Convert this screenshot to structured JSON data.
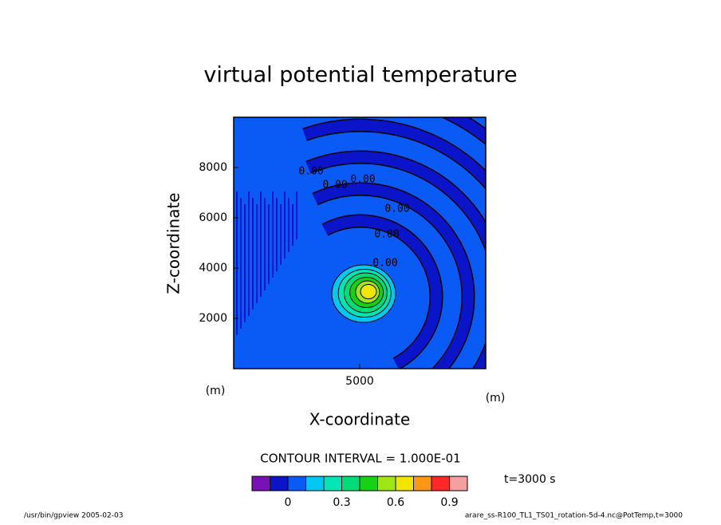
{
  "chart_data": {
    "type": "contour",
    "title": "virtual potential temperature",
    "xlabel": "X-coordinate",
    "ylabel": "Z-coordinate",
    "xunit": "(m)",
    "yunit": "(m)",
    "xlim": [
      0,
      10000
    ],
    "ylim": [
      0,
      10000
    ],
    "xticks": [
      5000
    ],
    "yticks": [
      2000,
      4000,
      6000,
      8000
    ],
    "contour_labels": [
      "0.00",
      "0.00",
      "0.00",
      "0.00",
      "0.00",
      "0.00"
    ],
    "contour_interval": "CONTOUR INTERVAL = 1.000E-01",
    "time_label": "t=3000 s",
    "levels": [
      -0.2,
      -0.1,
      0,
      0.1,
      0.2,
      0.3,
      0.4,
      0.5,
      0.6,
      0.7,
      0.8,
      0.9,
      1.0
    ],
    "colors": [
      "#7a10b8",
      "#0a14c8",
      "#0a5af5",
      "#00c8f0",
      "#00e6b4",
      "#00dc78",
      "#14d214",
      "#a0e614",
      "#f0e600",
      "#ff9614",
      "#ff2828",
      "#f5a0a0"
    ],
    "cbar_ticks": [
      0,
      0.3,
      0.6,
      0.9
    ],
    "footer_left": "/usr/bin/gpview  2005-02-03",
    "footer_right": "arare_ss-R100_TL1_TS01_rotation-5d-4.nc@PotTemp,t=3000"
  }
}
